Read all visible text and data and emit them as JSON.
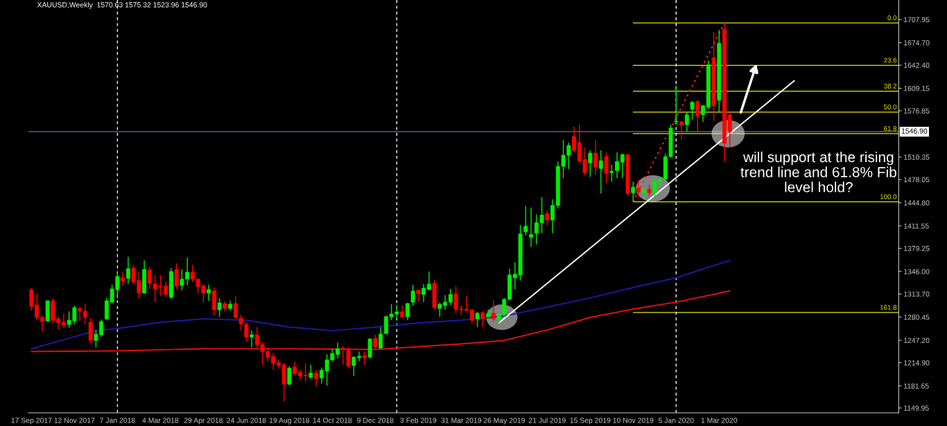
{
  "chart_data": {
    "type": "candlestick",
    "title": "XAUUSD,Weekly  1570.63 1575.32 1523.96 1546.90",
    "annotations": [
      "will support at the rising\ntrend line and 61.8% Fib\nlevel hold?",
      {
        "text": "0.0",
        "x": "2020-10-21",
        "y": 1703
      },
      {
        "text": "23.6",
        "x": "2020-10-21",
        "y": 1642
      },
      {
        "text": "38.2",
        "x": "2020-10-21",
        "y": 1605
      },
      {
        "text": "50.0",
        "x": "2020-10-21",
        "y": 1575
      },
      {
        "text": "61.8",
        "x": "2020-10-21",
        "y": 1544
      },
      {
        "text": "100.0",
        "x": "2020-10-21",
        "y": 1446
      },
      {
        "text": "161.8",
        "x": "2020-10-21",
        "y": 1287
      }
    ],
    "xlim": [
      "2017-09-13",
      "2020-10-21"
    ],
    "xticks": [
      {
        "value": "2017-09-17",
        "label": "17 Sep 2017"
      },
      {
        "value": "2017-11-12",
        "label": "12 Nov 2017"
      },
      {
        "value": "2018-01-07",
        "label": "7 Jan 2018"
      },
      {
        "value": "2018-03-04",
        "label": "4 Mar 2018"
      },
      {
        "value": "2018-04-29",
        "label": "29 Apr 2018"
      },
      {
        "value": "2018-06-24",
        "label": "24 Jun 2018"
      },
      {
        "value": "2018-08-19",
        "label": "19 Aug 2018"
      },
      {
        "value": "2018-10-14",
        "label": "14 Oct 2018"
      },
      {
        "value": "2018-12-09",
        "label": "9 Dec 2018"
      },
      {
        "value": "2019-02-03",
        "label": "3 Feb 2019"
      },
      {
        "value": "2019-03-31",
        "label": "31 Mar 2019"
      },
      {
        "value": "2019-05-26",
        "label": "26 May 2019"
      },
      {
        "value": "2019-07-21",
        "label": "21 Jul 2019"
      },
      {
        "value": "2019-09-15",
        "label": "15 Sep 2019"
      },
      {
        "value": "2019-11-10",
        "label": "10 Nov 2019"
      },
      {
        "value": "2020-01-05",
        "label": "5 Jan 2020"
      },
      {
        "value": "2020-03-01",
        "label": "1 Mar 2020"
      }
    ],
    "ylim": [
      1143,
      1736
    ],
    "yticks": [
      {
        "value": 1707.95,
        "label": "1707.95"
      },
      {
        "value": 1674.7,
        "label": "1674.70"
      },
      {
        "value": 1642.4,
        "label": "1642.40"
      },
      {
        "value": 1609.15,
        "label": "1609.15"
      },
      {
        "value": 1576.85,
        "label": "1576.85"
      },
      {
        "value": 1510.35,
        "label": "1510.35"
      },
      {
        "value": 1478.05,
        "label": "1478.05"
      },
      {
        "value": 1444.8,
        "label": "1444.80"
      },
      {
        "value": 1411.55,
        "label": "1411.55"
      },
      {
        "value": 1379.25,
        "label": "1379.25"
      },
      {
        "value": 1346.0,
        "label": "1346.00"
      },
      {
        "value": 1313.7,
        "label": "1313.70"
      },
      {
        "value": 1280.45,
        "label": "1280.45"
      },
      {
        "value": 1247.2,
        "label": "1247.20"
      },
      {
        "value": 1214.9,
        "label": "1214.90"
      },
      {
        "value": 1181.65,
        "label": "1181.65"
      },
      {
        "value": 1149.95,
        "label": "1149.95"
      }
    ],
    "ref_lines": [
      {
        "axis": "y",
        "value": 1546.9,
        "label": "1546.90",
        "color": "#8a8ab0",
        "line_style": "solid"
      },
      {
        "axis": "y",
        "value": 1703,
        "color": "#e6e600",
        "line_style": "solid"
      },
      {
        "axis": "y",
        "value": 1642,
        "color": "#e6e600",
        "line_style": "solid"
      },
      {
        "axis": "y",
        "value": 1605,
        "color": "#e6e600",
        "line_style": "solid"
      },
      {
        "axis": "y",
        "value": 1575,
        "color": "#e6e600",
        "line_style": "solid"
      },
      {
        "axis": "y",
        "value": 1544,
        "color": "#e6e600",
        "line_style": "solid"
      },
      {
        "axis": "y",
        "value": 1446,
        "color": "#e6e600",
        "line_style": "solid"
      },
      {
        "axis": "y",
        "value": 1287,
        "color": "#e6e600",
        "line_style": "solid"
      },
      {
        "axis": "x",
        "value": "2018-01-07",
        "color": "#ffffff",
        "line_style": "dashed"
      },
      {
        "axis": "x",
        "value": "2019-01-06",
        "color": "#ffffff",
        "line_style": "dashed"
      },
      {
        "axis": "x",
        "value": "2020-01-05",
        "color": "#ffffff",
        "line_style": "dashed"
      }
    ],
    "series": [
      {
        "type": "line",
        "color": "#1a1aa0",
        "line_style": "solid",
        "x": [
          "2017-09-17",
          "2017-12-10",
          "2018-01-07",
          "2018-03-04",
          "2018-04-29",
          "2018-06-24",
          "2018-08-19",
          "2018-10-14",
          "2018-12-09",
          "2019-02-03",
          "2019-03-31",
          "2019-05-26",
          "2019-07-21",
          "2019-09-15",
          "2019-11-10",
          "2020-01-05",
          "2020-03-15"
        ],
        "values": [
          1235,
          1261,
          1264,
          1273,
          1278,
          1276,
          1266,
          1261,
          1266,
          1272,
          1276,
          1282,
          1295,
          1308,
          1323,
          1337,
          1362
        ]
      },
      {
        "type": "line",
        "color": "#e01010",
        "line_style": "solid",
        "x": [
          "2017-09-17",
          "2018-01-07",
          "2018-04-29",
          "2018-08-19",
          "2018-12-09",
          "2019-02-03",
          "2019-03-31",
          "2019-05-26",
          "2019-07-21",
          "2019-09-15",
          "2019-11-10",
          "2020-01-05",
          "2020-03-15"
        ],
        "values": [
          1231,
          1232,
          1235,
          1235,
          1234,
          1238,
          1242,
          1247,
          1262,
          1280,
          1292,
          1302,
          1318
        ]
      },
      {
        "type": "line",
        "color": "#ffffff",
        "line_style": "solid",
        "x": [
          "2019-05-19",
          "2020-06-07"
        ],
        "values": [
          1272,
          1620
        ]
      },
      {
        "type": "line",
        "color": "#ff2020",
        "line_style": "dotted",
        "x": [
          "2019-11-10",
          "2020-03-08"
        ],
        "values": [
          1446,
          1703
        ]
      },
      {
        "colors": [
          "#ff0000",
          "#ff0000",
          "#ff0000",
          "#00ee00",
          "#ff0000",
          "#ff0000",
          "#ff0000",
          "#00ee00",
          "#00ee00",
          "#ff0000",
          "#ff0000",
          "#ff0000",
          "#00ee00",
          "#00ee00",
          "#00ee00",
          "#00ee00",
          "#00ee00",
          "#ff0000",
          "#00ee00",
          "#ff0000",
          "#ff0000",
          "#00ee00",
          "#ff0000",
          "#ff0000",
          "#ff0000",
          "#ff0000",
          "#00ee00",
          "#ff0000",
          "#00ee00",
          "#00ee00",
          "#ff0000",
          "#ff0000",
          "#ff0000",
          "#00ee00",
          "#ff0000",
          "#00ee00",
          "#ff0000",
          "#00ee00",
          "#ff0000",
          "#ff0000",
          "#ff0000",
          "#00ee00",
          "#ff0000",
          "#ff0000",
          "#ff0000",
          "#ff0000",
          "#ff0000",
          "#ff0000",
          "#00ee00",
          "#ff0000",
          "#ff0000",
          "#ff0000",
          "#00ee00",
          "#ff0000",
          "#00ee00",
          "#00ee00",
          "#00ee00",
          "#00ee00",
          "#ff0000",
          "#ff0000",
          "#00ee00",
          "#00ee00",
          "#ff0000",
          "#00ee00",
          "#ff0000",
          "#00ee00",
          "#00ee00",
          "#00ee00",
          "#00ee00",
          "#ff0000",
          "#00ee00",
          "#00ee00",
          "#ff0000",
          "#00ee00",
          "#00ee00",
          "#ff0000",
          "#00ee00",
          "#00ee00",
          "#00ee00",
          "#ff0000",
          "#ff0000",
          "#ff0000",
          "#ff0000",
          "#00ee00",
          "#ff0000",
          "#00ee00",
          "#ff0000",
          "#00ee00",
          "#00ee00",
          "#00ee00",
          "#00ee00",
          "#00ee00",
          "#00ee00",
          "#00ee00",
          "#00ee00",
          "#00ee00",
          "#ff0000",
          "#00ee00",
          "#00ee00",
          "#00ee00",
          "#00ee00",
          "#ff0000",
          "#ff0000",
          "#ff0000",
          "#00ee00",
          "#ff0000",
          "#00ee00",
          "#ff0000",
          "#00ee00",
          "#00ee00",
          "#00ee00",
          "#ff0000",
          "#00ee00",
          "#ff0000",
          "#00ee00",
          "#ff0000",
          "#00ee00",
          "#00ee00",
          "#00ee00",
          "#00ee00",
          "#00ee00",
          "#ff0000",
          "#00ee00",
          "#00ee00",
          "#ff0000",
          "#00ee00",
          "#00ee00",
          "#ff0000",
          "#00ee00",
          "#ff0000",
          "#ff0000"
        ],
        "x": [
          "2017-09-17",
          "2017-09-24",
          "2017-10-01",
          "2017-10-08",
          "2017-10-15",
          "2017-10-22",
          "2017-10-29",
          "2017-11-05",
          "2017-11-12",
          "2017-11-19",
          "2017-11-26",
          "2017-12-03",
          "2017-12-10",
          "2017-12-17",
          "2017-12-24",
          "2017-12-31",
          "2018-01-07",
          "2018-01-14",
          "2018-01-21",
          "2018-01-28",
          "2018-02-04",
          "2018-02-11",
          "2018-02-18",
          "2018-02-25",
          "2018-03-04",
          "2018-03-11",
          "2018-03-18",
          "2018-03-25",
          "2018-04-01",
          "2018-04-08",
          "2018-04-15",
          "2018-04-22",
          "2018-04-29",
          "2018-05-06",
          "2018-05-13",
          "2018-05-20",
          "2018-05-27",
          "2018-06-03",
          "2018-06-10",
          "2018-06-17",
          "2018-06-24",
          "2018-07-01",
          "2018-07-08",
          "2018-07-15",
          "2018-07-22",
          "2018-07-29",
          "2018-08-05",
          "2018-08-12",
          "2018-08-19",
          "2018-08-26",
          "2018-09-02",
          "2018-09-09",
          "2018-09-16",
          "2018-09-23",
          "2018-09-30",
          "2018-10-07",
          "2018-10-14",
          "2018-10-21",
          "2018-10-28",
          "2018-11-04",
          "2018-11-11",
          "2018-11-18",
          "2018-11-25",
          "2018-12-02",
          "2018-12-09",
          "2018-12-16",
          "2018-12-23",
          "2018-12-30",
          "2019-01-06",
          "2019-01-13",
          "2019-01-20",
          "2019-01-27",
          "2019-02-03",
          "2019-02-10",
          "2019-02-17",
          "2019-02-24",
          "2019-03-03",
          "2019-03-10",
          "2019-03-17",
          "2019-03-24",
          "2019-03-31",
          "2019-04-07",
          "2019-04-14",
          "2019-04-21",
          "2019-04-28",
          "2019-05-05",
          "2019-05-12",
          "2019-05-19",
          "2019-05-26",
          "2019-06-02",
          "2019-06-09",
          "2019-06-16",
          "2019-06-23",
          "2019-06-30",
          "2019-07-07",
          "2019-07-14",
          "2019-07-21",
          "2019-07-28",
          "2019-08-04",
          "2019-08-11",
          "2019-08-18",
          "2019-08-25",
          "2019-09-01",
          "2019-09-08",
          "2019-09-15",
          "2019-09-22",
          "2019-09-29",
          "2019-10-06",
          "2019-10-13",
          "2019-10-20",
          "2019-10-27",
          "2019-11-03",
          "2019-11-10",
          "2019-11-17",
          "2019-11-24",
          "2019-12-01",
          "2019-12-08",
          "2019-12-15",
          "2019-12-22",
          "2019-12-29",
          "2020-01-05",
          "2020-01-12",
          "2020-01-19",
          "2020-01-26",
          "2020-02-02",
          "2020-02-09",
          "2020-02-16",
          "2020-02-23",
          "2020-03-01",
          "2020-03-08",
          "2020-03-15"
        ],
        "ohlc": [
          [
            1320,
            1322,
            1290,
            1296
          ],
          [
            1298,
            1314,
            1276,
            1280
          ],
          [
            1280,
            1283,
            1260,
            1274
          ],
          [
            1275,
            1304,
            1274,
            1304
          ],
          [
            1304,
            1307,
            1271,
            1276
          ],
          [
            1278,
            1281,
            1263,
            1272
          ],
          [
            1273,
            1285,
            1265,
            1269
          ],
          [
            1270,
            1289,
            1265,
            1276
          ],
          [
            1275,
            1297,
            1270,
            1294
          ],
          [
            1293,
            1295,
            1275,
            1289
          ],
          [
            1289,
            1300,
            1270,
            1280
          ],
          [
            1273,
            1279,
            1243,
            1247
          ],
          [
            1247,
            1262,
            1237,
            1256
          ],
          [
            1255,
            1277,
            1252,
            1274
          ],
          [
            1278,
            1308,
            1276,
            1304
          ],
          [
            1302,
            1327,
            1301,
            1321
          ],
          [
            1320,
            1345,
            1307,
            1339
          ],
          [
            1337,
            1345,
            1325,
            1332
          ],
          [
            1336,
            1367,
            1328,
            1350
          ],
          [
            1351,
            1355,
            1327,
            1331
          ],
          [
            1333,
            1346,
            1307,
            1315
          ],
          [
            1315,
            1362,
            1314,
            1349
          ],
          [
            1348,
            1352,
            1321,
            1329
          ],
          [
            1328,
            1341,
            1302,
            1321
          ],
          [
            1325,
            1341,
            1311,
            1324
          ],
          [
            1325,
            1331,
            1309,
            1313
          ],
          [
            1309,
            1351,
            1307,
            1346
          ],
          [
            1349,
            1358,
            1321,
            1325
          ],
          [
            1326,
            1349,
            1319,
            1335
          ],
          [
            1335,
            1366,
            1326,
            1345
          ],
          [
            1345,
            1356,
            1331,
            1335
          ],
          [
            1335,
            1336,
            1315,
            1324
          ],
          [
            1326,
            1326,
            1301,
            1315
          ],
          [
            1315,
            1327,
            1304,
            1320
          ],
          [
            1318,
            1323,
            1283,
            1291
          ],
          [
            1291,
            1308,
            1281,
            1301
          ],
          [
            1300,
            1303,
            1289,
            1293
          ],
          [
            1293,
            1304,
            1290,
            1299
          ],
          [
            1300,
            1310,
            1278,
            1280
          ],
          [
            1279,
            1284,
            1261,
            1271
          ],
          [
            1270,
            1273,
            1245,
            1252
          ],
          [
            1252,
            1261,
            1237,
            1255
          ],
          [
            1255,
            1266,
            1237,
            1241
          ],
          [
            1241,
            1245,
            1212,
            1231
          ],
          [
            1231,
            1236,
            1217,
            1223
          ],
          [
            1224,
            1229,
            1205,
            1214
          ],
          [
            1215,
            1219,
            1206,
            1211
          ],
          [
            1212,
            1215,
            1159,
            1184
          ],
          [
            1184,
            1210,
            1182,
            1207
          ],
          [
            1209,
            1216,
            1196,
            1199
          ],
          [
            1201,
            1205,
            1190,
            1196
          ],
          [
            1197,
            1214,
            1188,
            1196
          ],
          [
            1194,
            1212,
            1192,
            1200
          ],
          [
            1200,
            1205,
            1181,
            1192
          ],
          [
            1193,
            1208,
            1185,
            1204
          ],
          [
            1203,
            1227,
            1182,
            1219
          ],
          [
            1219,
            1235,
            1217,
            1228
          ],
          [
            1227,
            1244,
            1221,
            1235
          ],
          [
            1236,
            1239,
            1212,
            1234
          ],
          [
            1234,
            1237,
            1207,
            1210
          ],
          [
            1211,
            1224,
            1196,
            1223
          ],
          [
            1222,
            1231,
            1217,
            1224
          ],
          [
            1225,
            1231,
            1212,
            1222
          ],
          [
            1223,
            1250,
            1221,
            1249
          ],
          [
            1250,
            1255,
            1234,
            1238
          ],
          [
            1236,
            1266,
            1236,
            1256
          ],
          [
            1257,
            1283,
            1256,
            1281
          ],
          [
            1281,
            1299,
            1276,
            1285
          ],
          [
            1285,
            1298,
            1278,
            1288
          ],
          [
            1288,
            1297,
            1280,
            1281
          ],
          [
            1281,
            1301,
            1276,
            1300
          ],
          [
            1302,
            1327,
            1297,
            1318
          ],
          [
            1319,
            1320,
            1303,
            1314
          ],
          [
            1313,
            1328,
            1302,
            1322
          ],
          [
            1320,
            1346,
            1320,
            1328
          ],
          [
            1329,
            1334,
            1291,
            1294
          ],
          [
            1293,
            1301,
            1281,
            1299
          ],
          [
            1297,
            1312,
            1291,
            1302
          ],
          [
            1302,
            1321,
            1298,
            1313
          ],
          [
            1314,
            1325,
            1286,
            1292
          ],
          [
            1292,
            1297,
            1283,
            1291
          ],
          [
            1292,
            1311,
            1290,
            1290
          ],
          [
            1291,
            1292,
            1271,
            1276
          ],
          [
            1278,
            1288,
            1266,
            1286
          ],
          [
            1287,
            1289,
            1266,
            1278
          ],
          [
            1281,
            1291,
            1280,
            1285
          ],
          [
            1286,
            1305,
            1274,
            1278
          ],
          [
            1278,
            1286,
            1271,
            1285
          ],
          [
            1285,
            1308,
            1281,
            1306
          ],
          [
            1306,
            1350,
            1305,
            1341
          ],
          [
            1337,
            1359,
            1320,
            1342
          ],
          [
            1341,
            1413,
            1333,
            1400
          ],
          [
            1403,
            1440,
            1398,
            1411
          ],
          [
            1395,
            1438,
            1381,
            1399
          ],
          [
            1401,
            1428,
            1385,
            1416
          ],
          [
            1416,
            1453,
            1401,
            1427
          ],
          [
            1429,
            1434,
            1412,
            1420
          ],
          [
            1420,
            1450,
            1401,
            1441
          ],
          [
            1441,
            1504,
            1437,
            1497
          ],
          [
            1497,
            1535,
            1480,
            1513
          ],
          [
            1513,
            1531,
            1493,
            1527
          ],
          [
            1540,
            1554,
            1517,
            1520
          ],
          [
            1531,
            1557,
            1502,
            1505
          ],
          [
            1507,
            1524,
            1484,
            1488
          ],
          [
            1502,
            1520,
            1482,
            1516
          ],
          [
            1516,
            1535,
            1485,
            1496
          ],
          [
            1494,
            1520,
            1458,
            1505
          ],
          [
            1511,
            1517,
            1473,
            1487
          ],
          [
            1488,
            1499,
            1475,
            1490
          ],
          [
            1491,
            1517,
            1480,
            1504
          ],
          [
            1503,
            1515,
            1480,
            1514
          ],
          [
            1514,
            1514,
            1454,
            1458
          ],
          [
            1459,
            1475,
            1446,
            1467
          ],
          [
            1466,
            1478,
            1454,
            1460
          ],
          [
            1459,
            1465,
            1450,
            1464
          ],
          [
            1464,
            1470,
            1454,
            1459
          ],
          [
            1459,
            1479,
            1454,
            1475
          ],
          [
            1475,
            1482,
            1469,
            1479
          ],
          [
            1479,
            1515,
            1477,
            1511
          ],
          [
            1511,
            1557,
            1510,
            1552
          ],
          [
            1561,
            1613,
            1557,
            1562
          ],
          [
            1561,
            1562,
            1535,
            1556
          ],
          [
            1557,
            1575,
            1547,
            1571
          ],
          [
            1579,
            1591,
            1564,
            1589
          ],
          [
            1590,
            1593,
            1547,
            1569
          ],
          [
            1571,
            1585,
            1561,
            1584
          ],
          [
            1582,
            1649,
            1579,
            1643
          ],
          [
            1653,
            1690,
            1562,
            1584
          ],
          [
            1592,
            1693,
            1575,
            1674
          ],
          [
            1694,
            1703,
            1504,
            1530
          ],
          [
            1570.63,
            1575.32,
            1523.96,
            1546.9
          ]
        ]
      }
    ]
  }
}
